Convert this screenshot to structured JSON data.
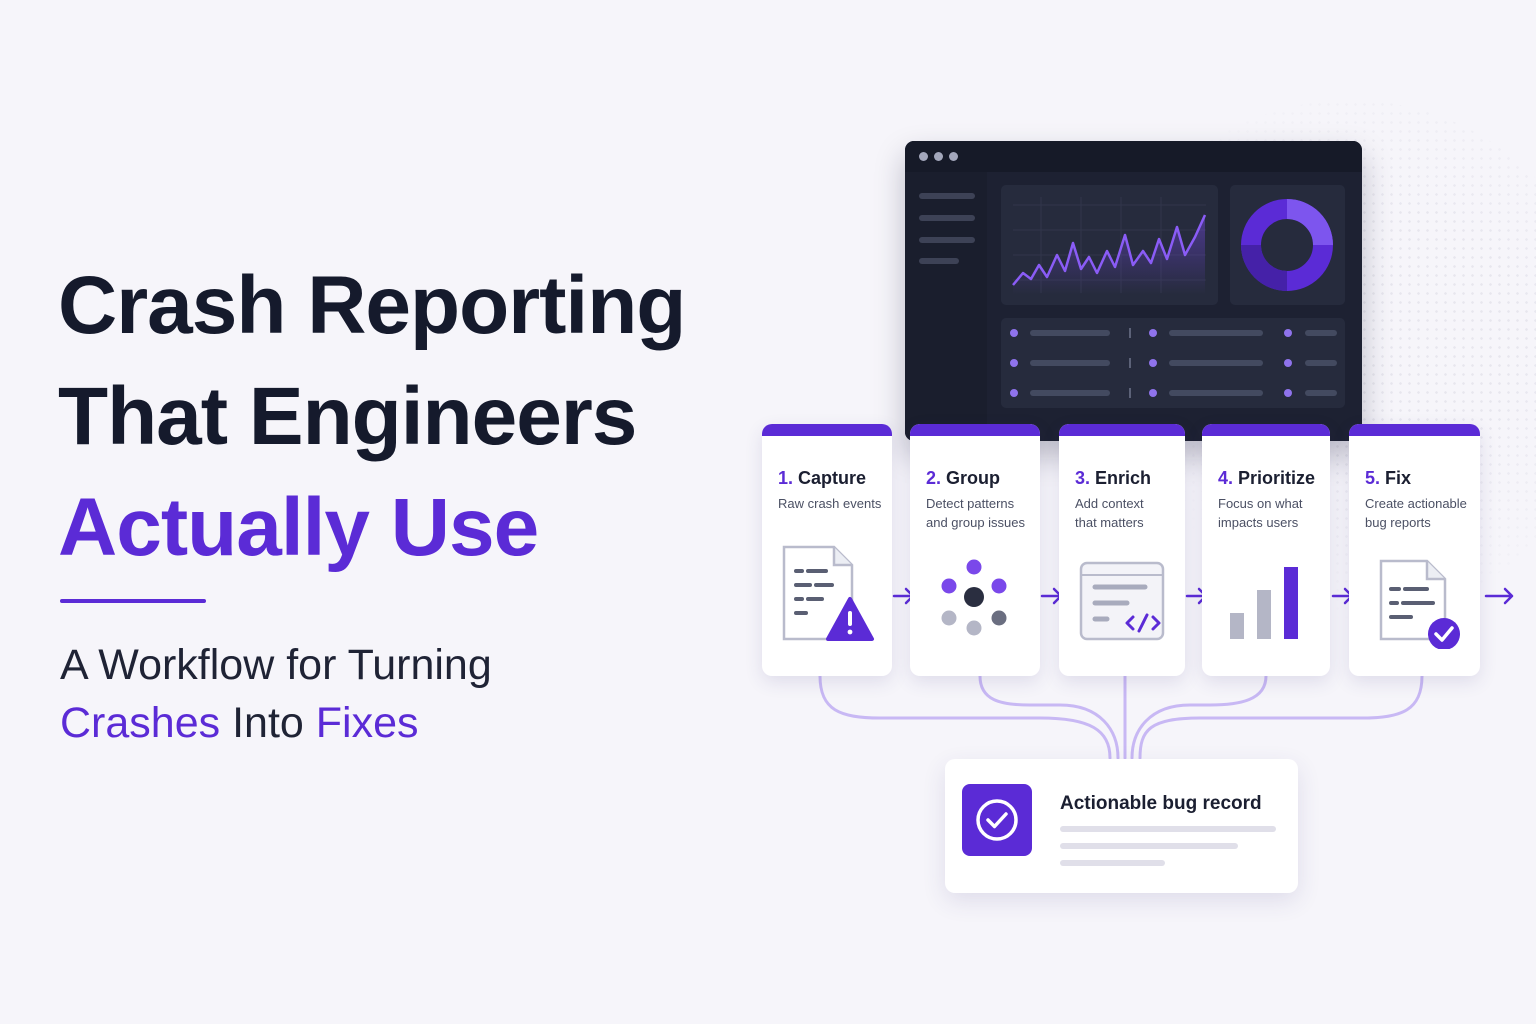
{
  "headline": {
    "line1": "Crash Reporting",
    "line2": "That Engineers",
    "line3": "Actually Use"
  },
  "subhead": {
    "line1": "A Workflow for Turning",
    "crashes": "Crashes",
    "into": "Into",
    "fixes": "Fixes"
  },
  "steps": [
    {
      "num": "1.",
      "title": "Capture",
      "desc": [
        "Raw crash events"
      ],
      "icon": "document-warning-icon"
    },
    {
      "num": "2.",
      "title": "Group",
      "desc": [
        "Detect patterns",
        "and group issues"
      ],
      "icon": "cluster-dots-icon"
    },
    {
      "num": "3.",
      "title": "Enrich",
      "desc": [
        "Add context",
        "that matters"
      ],
      "icon": "code-window-icon"
    },
    {
      "num": "4.",
      "title": "Prioritize",
      "desc": [
        "Focus on what",
        "impacts users"
      ],
      "icon": "bar-chart-icon"
    },
    {
      "num": "5.",
      "title": "Fix",
      "desc": [
        "Create actionable",
        "bug reports"
      ],
      "icon": "document-check-icon"
    }
  ],
  "record": {
    "title": "Actionable bug record",
    "icon": "check-circle-icon"
  },
  "colors": {
    "accent": "#5b2bd6",
    "background": "#f6f5fa",
    "dark": "#1d2132"
  }
}
